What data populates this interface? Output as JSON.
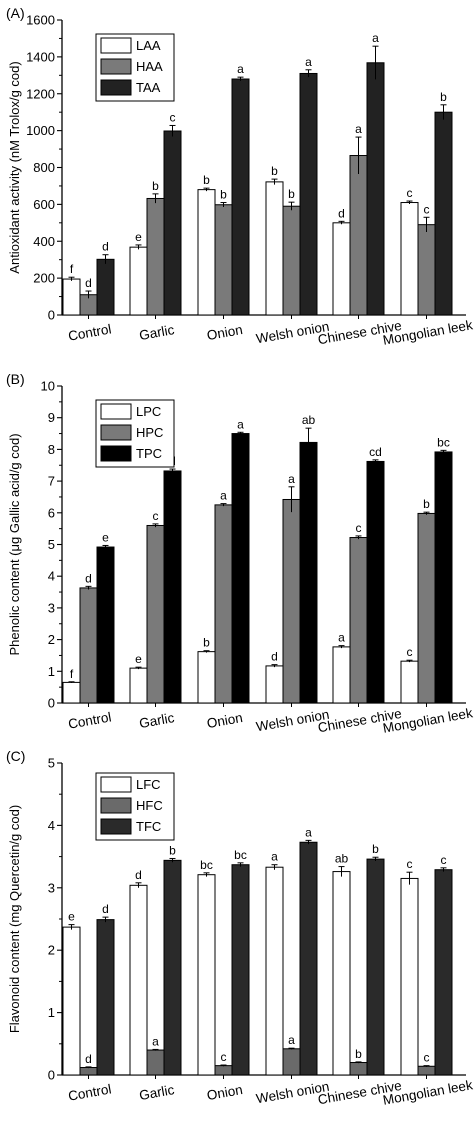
{
  "chart_data": [
    {
      "type": "bar",
      "panel_label": "(A)",
      "ylabel": "Antioxidant activity (nM Trolox/g cod)",
      "ylim": [
        0,
        1600
      ],
      "yticks": [
        0,
        200,
        400,
        600,
        800,
        1000,
        1200,
        1400,
        1600
      ],
      "categories": [
        "Control",
        "Garlic",
        "Onion",
        "Welsh onion",
        "Chinese chive",
        "Mongolian leek"
      ],
      "legend_position": "top-left",
      "series": [
        {
          "name": "LAA",
          "color": "#ffffff",
          "values": [
            195,
            368,
            680,
            722,
            500,
            610
          ],
          "errors": [
            10,
            12,
            8,
            15,
            8,
            8
          ],
          "letters": [
            "f",
            "e",
            "b",
            "b",
            "d",
            "c"
          ]
        },
        {
          "name": "HAA",
          "color": "#7a7a7a",
          "values": [
            110,
            632,
            598,
            590,
            865,
            490
          ],
          "errors": [
            20,
            25,
            12,
            22,
            100,
            40
          ],
          "letters": [
            "d",
            "b",
            "b",
            "b",
            "a",
            "c"
          ]
        },
        {
          "name": "TAA",
          "color": "#222222",
          "values": [
            302,
            998,
            1280,
            1310,
            1368,
            1100
          ],
          "errors": [
            25,
            30,
            10,
            20,
            90,
            40
          ],
          "letters": [
            "d",
            "c",
            "a",
            "a",
            "a",
            "b"
          ]
        }
      ]
    },
    {
      "type": "bar",
      "panel_label": "(B)",
      "ylabel": "Phenolic content (μg Gallic acid/g cod)",
      "ylim": [
        0,
        10
      ],
      "yticks": [
        0,
        1,
        2,
        3,
        4,
        5,
        6,
        7,
        8,
        9,
        10
      ],
      "categories": [
        "Control",
        "Garlic",
        "Onion",
        "Welsh onion",
        "Chinese chive",
        "Mongolian leek"
      ],
      "legend_position": "top-left",
      "series": [
        {
          "name": "LPC",
          "color": "#ffffff",
          "values": [
            0.65,
            1.1,
            1.62,
            1.17,
            1.77,
            1.32
          ],
          "errors": [
            0.02,
            0.03,
            0.03,
            0.04,
            0.04,
            0.03
          ],
          "letters": [
            "f",
            "e",
            "b",
            "d",
            "a",
            "c"
          ]
        },
        {
          "name": "HPC",
          "color": "#7a7a7a",
          "values": [
            3.63,
            5.6,
            6.25,
            6.42,
            5.22,
            5.98
          ],
          "errors": [
            0.05,
            0.05,
            0.04,
            0.4,
            0.05,
            0.04
          ],
          "letters": [
            "d",
            "c",
            "a",
            "a",
            "c",
            "b"
          ]
        },
        {
          "name": "TPC",
          "color": "#000000",
          "values": [
            4.92,
            7.32,
            8.5,
            8.22,
            7.62,
            7.92
          ],
          "errors": [
            0.05,
            0.06,
            0.04,
            0.45,
            0.05,
            0.05
          ],
          "letters": [
            "e",
            "d",
            "a",
            "ab",
            "cd",
            "bc"
          ]
        }
      ]
    },
    {
      "type": "bar",
      "panel_label": "(C)",
      "ylabel": "Flavonoid content (mg Quercetin/g cod)",
      "ylim": [
        0,
        5
      ],
      "yticks": [
        0,
        1,
        2,
        3,
        4,
        5
      ],
      "categories": [
        "Control",
        "Garlic",
        "Onion",
        "Welsh onion",
        "Chinese chive",
        "Mongolian leek"
      ],
      "legend_position": "top-left",
      "series": [
        {
          "name": "LFC",
          "color": "#ffffff",
          "values": [
            2.37,
            3.04,
            3.21,
            3.33,
            3.26,
            3.15
          ],
          "errors": [
            0.04,
            0.04,
            0.03,
            0.04,
            0.08,
            0.1
          ],
          "letters": [
            "e",
            "d",
            "bc",
            "a",
            "ab",
            "c"
          ]
        },
        {
          "name": "HFC",
          "color": "#6a6a6a",
          "values": [
            0.12,
            0.4,
            0.15,
            0.42,
            0.2,
            0.14
          ],
          "errors": [
            0.01,
            0.01,
            0.01,
            0.01,
            0.01,
            0.01
          ],
          "letters": [
            "d",
            "a",
            "c",
            "a",
            "b",
            "c"
          ]
        },
        {
          "name": "TFC",
          "color": "#2a2a2a",
          "values": [
            2.49,
            3.44,
            3.37,
            3.73,
            3.46,
            3.29
          ],
          "errors": [
            0.04,
            0.03,
            0.03,
            0.03,
            0.03,
            0.03
          ],
          "letters": [
            "d",
            "b",
            "bc",
            "a",
            "b",
            "c"
          ]
        }
      ]
    }
  ]
}
